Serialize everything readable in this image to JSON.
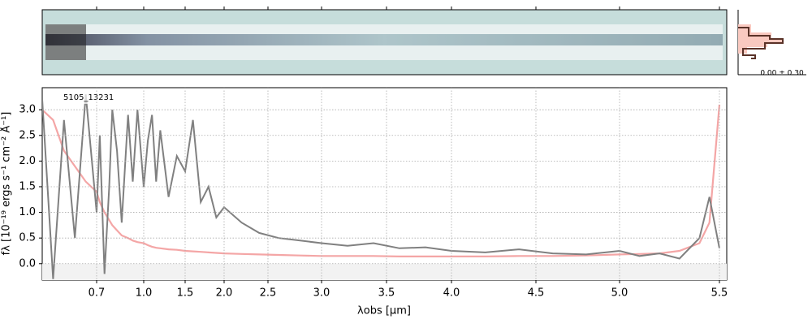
{
  "chart_data": {
    "type": "line",
    "label": "5105_13231",
    "xlabel": "λobs [μm]",
    "ylabel": "fλ [10⁻¹⁹ ergs s⁻¹ cm⁻² Å⁻¹]",
    "hist_annotation": "0.00 ± 0.30",
    "x": [
      0.6,
      0.62,
      0.64,
      0.66,
      0.68,
      0.7,
      0.72,
      0.75,
      0.78,
      0.8,
      0.83,
      0.86,
      0.9,
      0.93,
      0.96,
      1.0,
      1.05,
      1.1,
      1.15,
      1.2,
      1.3,
      1.4,
      1.5,
      1.6,
      1.7,
      1.8,
      1.9,
      2.0,
      2.2,
      2.4,
      2.6,
      2.8,
      3.0,
      3.2,
      3.4,
      3.6,
      3.8,
      4.0,
      4.2,
      4.4,
      4.6,
      4.8,
      5.0,
      5.1,
      5.2,
      5.3,
      5.4,
      5.45,
      5.5
    ],
    "series": [
      {
        "color": "#808080",
        "values": [
          3.2,
          -0.3,
          2.8,
          0.5,
          3.3,
          1.0,
          2.5,
          -0.2,
          1.5,
          3.0,
          2.2,
          0.8,
          2.9,
          1.6,
          3.0,
          1.5,
          2.4,
          2.9,
          1.6,
          2.6,
          1.3,
          2.1,
          1.8,
          2.8,
          1.2,
          1.5,
          0.9,
          1.1,
          0.8,
          0.6,
          0.5,
          0.45,
          0.4,
          0.35,
          0.4,
          0.3,
          0.32,
          0.25,
          0.22,
          0.28,
          0.2,
          0.18,
          0.25,
          0.15,
          0.2,
          0.1,
          0.5,
          1.3,
          0.3
        ]
      },
      {
        "color": "#f4a6a6",
        "values": [
          3.0,
          2.8,
          2.2,
          1.9,
          1.6,
          1.4,
          1.2,
          1.0,
          0.85,
          0.75,
          0.65,
          0.55,
          0.5,
          0.45,
          0.42,
          0.4,
          0.36,
          0.33,
          0.31,
          0.3,
          0.28,
          0.27,
          0.25,
          0.24,
          0.23,
          0.22,
          0.21,
          0.2,
          0.19,
          0.18,
          0.17,
          0.16,
          0.15,
          0.15,
          0.15,
          0.14,
          0.14,
          0.14,
          0.14,
          0.15,
          0.15,
          0.16,
          0.18,
          0.19,
          0.2,
          0.25,
          0.4,
          0.8,
          3.1
        ]
      }
    ],
    "xlim": [
      0.6,
      5.52
    ],
    "xticks": [
      {
        "value": 0.7,
        "label": "0.7"
      },
      {
        "value": 1,
        "label": "1.0"
      },
      1.5,
      {
        "value": 2,
        "label": "2.0"
      },
      2.5,
      {
        "value": 3,
        "label": "3.0"
      },
      3.5,
      {
        "value": 4,
        "label": "4.0"
      },
      4.5,
      {
        "value": 5,
        "label": "5.0"
      },
      5.5
    ],
    "ylim": [
      -0.32,
      3.43
    ],
    "yticks": [
      {
        "value": 0,
        "label": "0.0"
      },
      0.5,
      {
        "value": 1,
        "label": "1.0"
      },
      1.5,
      {
        "value": 2,
        "label": "2.0"
      },
      2.5,
      {
        "value": 3,
        "label": "3.0"
      }
    ],
    "grid": true
  }
}
